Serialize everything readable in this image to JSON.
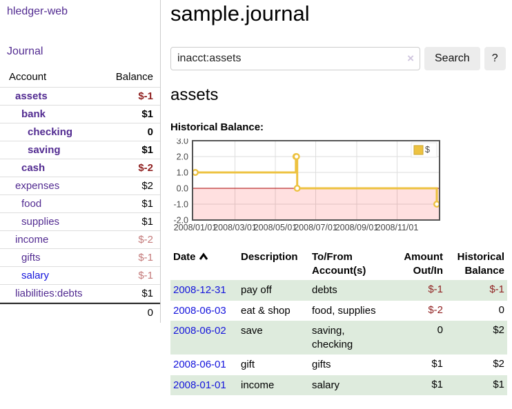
{
  "app": {
    "brand": "hledger-web"
  },
  "sidebar": {
    "journal_label": "Journal",
    "accounts": {
      "account_header": "Account",
      "balance_header": "Balance",
      "rows": [
        {
          "name": "assets",
          "balance": "$-1",
          "depth": 1,
          "matched": true,
          "balance_tone": "negative-strong",
          "link_tone": "purple"
        },
        {
          "name": "bank",
          "balance": "$1",
          "depth": 2,
          "matched": true,
          "balance_tone": "normal",
          "link_tone": "purple"
        },
        {
          "name": "checking",
          "balance": "0",
          "depth": 3,
          "matched": true,
          "balance_tone": "normal",
          "link_tone": "purple"
        },
        {
          "name": "saving",
          "balance": "$1",
          "depth": 3,
          "matched": true,
          "balance_tone": "normal",
          "link_tone": "purple"
        },
        {
          "name": "cash",
          "balance": "$-2",
          "depth": 2,
          "matched": true,
          "balance_tone": "negative-strong",
          "link_tone": "purple"
        },
        {
          "name": "expenses",
          "balance": "$2",
          "depth": 1,
          "matched": false,
          "balance_tone": "normal",
          "link_tone": "purple"
        },
        {
          "name": "food",
          "balance": "$1",
          "depth": 2,
          "matched": false,
          "balance_tone": "normal",
          "link_tone": "purple"
        },
        {
          "name": "supplies",
          "balance": "$1",
          "depth": 2,
          "matched": false,
          "balance_tone": "normal",
          "link_tone": "purple"
        },
        {
          "name": "income",
          "balance": "$-2",
          "depth": 1,
          "matched": false,
          "balance_tone": "negative-soft",
          "link_tone": "purple"
        },
        {
          "name": "gifts",
          "balance": "$-1",
          "depth": 2,
          "matched": false,
          "balance_tone": "negative-soft",
          "link_tone": "purple"
        },
        {
          "name": "salary",
          "balance": "$-1",
          "depth": 2,
          "matched": false,
          "balance_tone": "negative-soft",
          "link_tone": "blue"
        },
        {
          "name": "liabilities:debts",
          "balance": "$1",
          "depth": 1,
          "matched": false,
          "balance_tone": "normal",
          "link_tone": "purple"
        }
      ],
      "total": "0"
    }
  },
  "main": {
    "title": "sample.journal",
    "search": {
      "value": "inacct:assets",
      "clear_icon": "×",
      "button_label": "Search",
      "help_label": "?"
    },
    "account_heading": "assets",
    "chart_label": "Historical Balance:",
    "register": {
      "headers": {
        "date": "Date",
        "description": "Description",
        "accounts": "To/From Account(s)",
        "amount": "Amount Out/In",
        "balance": "Historical Balance"
      },
      "sort": {
        "column": "date",
        "direction": "ascending"
      },
      "rows": [
        {
          "date": "2008-12-31",
          "description": "pay off",
          "accounts": "debts",
          "amount": "$-1",
          "balance": "$-1",
          "amount_negative": true,
          "balance_negative": true,
          "shaded": true
        },
        {
          "date": "2008-06-03",
          "description": "eat & shop",
          "accounts": "food, supplies",
          "amount": "$-2",
          "balance": "0",
          "amount_negative": true,
          "balance_negative": false,
          "shaded": false
        },
        {
          "date": "2008-06-02",
          "description": "save",
          "accounts": "saving, checking",
          "amount": "0",
          "balance": "$2",
          "amount_negative": false,
          "balance_negative": false,
          "shaded": true
        },
        {
          "date": "2008-06-01",
          "description": "gift",
          "accounts": "gifts",
          "amount": "$1",
          "balance": "$2",
          "amount_negative": false,
          "balance_negative": false,
          "shaded": false
        },
        {
          "date": "2008-01-01",
          "description": "income",
          "accounts": "salary",
          "amount": "$1",
          "balance": "$1",
          "amount_negative": false,
          "balance_negative": false,
          "shaded": true
        }
      ]
    }
  },
  "chart_data": {
    "type": "line",
    "subtype": "step",
    "title": "Historical Balance:",
    "series": [
      {
        "name": "$",
        "points": [
          {
            "date": "2008-01-01",
            "value": 1
          },
          {
            "date": "2008-06-01",
            "value": 2
          },
          {
            "date": "2008-06-02",
            "value": 2
          },
          {
            "date": "2008-06-03",
            "value": 0
          },
          {
            "date": "2008-12-31",
            "value": -1
          }
        ]
      }
    ],
    "x_range": [
      "2008-01-01",
      "2008-12-31"
    ],
    "ylim": [
      -2,
      3
    ],
    "yticks": [
      3.0,
      2.0,
      1.0,
      0.0,
      -1.0,
      -2.0
    ],
    "xtick_labels": [
      "2008/01/01",
      "2008/03/01",
      "2008/05/01",
      "2008/07/01",
      "2008/09/01",
      "2008/11/01"
    ],
    "grid": true,
    "legend_position": "top-right",
    "colors": {
      "series": "#edc240",
      "series_border": "#c9a42e",
      "negative_fill": "rgba(255,0,0,0.12)",
      "zero_line": "#aa0000",
      "grid": "#dddddd",
      "border": "#545454"
    }
  },
  "colors": {
    "purple_link": "#522b91",
    "blue_link": "#1414dc",
    "negative_strong": "#8f1f1f",
    "negative_soft": "#c47a7a",
    "row_shade": "#deebdd",
    "button_bg": "#ececec"
  }
}
